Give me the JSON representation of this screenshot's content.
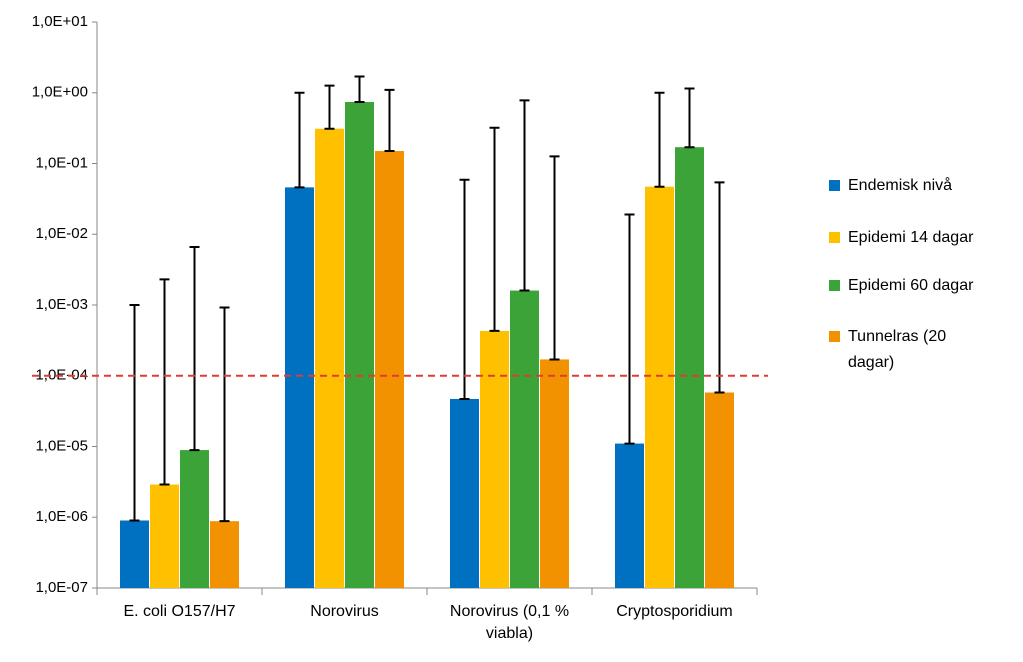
{
  "chart_data": {
    "type": "bar",
    "log_scale": true,
    "categories": [
      "E. coli O157/H7",
      "Norovirus",
      "Norovirus (0,1 % viabla)",
      "Cryptosporidium"
    ],
    "series": [
      {
        "name": "Endemisk nivå",
        "color": "#0070c0",
        "values": [
          9e-07,
          0.046,
          4.7e-05,
          1.1e-05
        ],
        "upper": [
          0.001,
          1.0,
          0.059,
          0.019
        ]
      },
      {
        "name": "Epidemi 14 dagar",
        "color": "#ffc000",
        "values": [
          2.9e-06,
          0.31,
          0.00043,
          0.047
        ],
        "upper": [
          0.0023,
          1.26,
          0.32,
          1.0
        ]
      },
      {
        "name": "Epidemi 60 dagar",
        "color": "#3ca338",
        "values": [
          8.9e-06,
          0.74,
          0.0016,
          0.17
        ],
        "upper": [
          0.0066,
          1.7,
          0.78,
          1.15
        ]
      },
      {
        "name": "Tunnelras (20 dagar)",
        "color": "#f39200",
        "values": [
          8.8e-07,
          0.15,
          0.00017,
          5.8e-05
        ],
        "upper": [
          0.00092,
          1.1,
          0.126,
          0.054
        ]
      }
    ],
    "ylim": [
      1e-07,
      10
    ],
    "yticks": [
      {
        "value": 1e-07,
        "label": "1,0E-07"
      },
      {
        "value": 1e-06,
        "label": "1,0E-06"
      },
      {
        "value": 1e-05,
        "label": "1,0E-05"
      },
      {
        "value": 0.0001,
        "label": "1,0E-04"
      },
      {
        "value": 0.001,
        "label": "1,0E-03"
      },
      {
        "value": 0.01,
        "label": "1,0E-02"
      },
      {
        "value": 0.1,
        "label": "1,0E-01"
      },
      {
        "value": 1,
        "label": "1,0E+00"
      },
      {
        "value": 10,
        "label": "1,0E+01"
      }
    ],
    "reference_line": {
      "value": 0.0001,
      "color": "#e03c31"
    },
    "legend": "right"
  }
}
